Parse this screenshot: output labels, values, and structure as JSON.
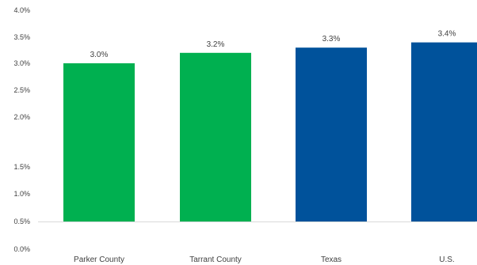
{
  "chart_data": {
    "type": "bar",
    "categories": [
      "Parker County",
      "Tarrant County",
      "Texas",
      "U.S."
    ],
    "values": [
      3.0,
      3.2,
      3.3,
      3.4
    ],
    "value_labels": [
      "3.0%",
      "3.2%",
      "3.3%",
      "3.4%"
    ],
    "bar_colors": [
      "#00b050",
      "#00b050",
      "#00529b",
      "#00529b"
    ],
    "y_ticks": [
      0.0,
      0.5,
      1.0,
      1.5,
      2.0,
      2.5,
      3.0,
      3.5,
      4.0
    ],
    "y_tick_labels": [
      "0.0%",
      "0.5%",
      "1.0%",
      "1.5%",
      "2.0%",
      "2.5%",
      "3.0%",
      "3.5%",
      "4.0%"
    ],
    "ylim": [
      0,
      4.0
    ],
    "grid": false,
    "legend": "none",
    "title": "",
    "xlabel": "",
    "ylabel": ""
  }
}
